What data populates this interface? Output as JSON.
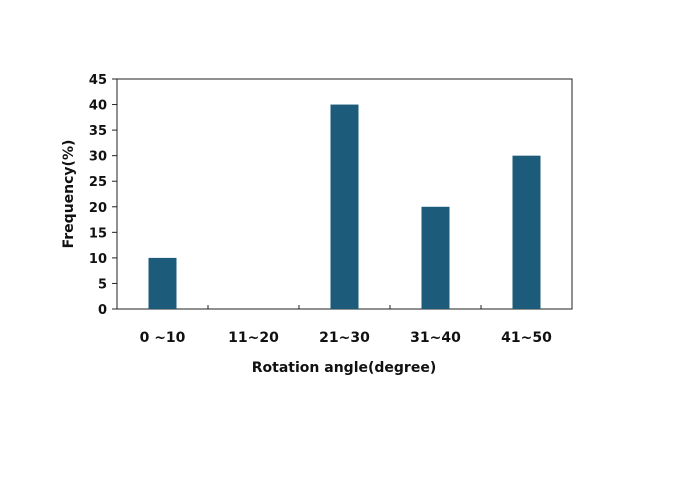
{
  "chart_data": {
    "type": "bar",
    "categories": [
      "0 ~10",
      "11~20",
      "21~30",
      "31~40",
      "41~50"
    ],
    "values": [
      10,
      0,
      40,
      20,
      30
    ],
    "title": "",
    "xlabel": "Rotation angle(degree)",
    "ylabel": "Frequency(%)",
    "ylim": [
      0,
      45
    ],
    "yticks": [
      0,
      5,
      10,
      15,
      20,
      25,
      30,
      35,
      40,
      45
    ],
    "grid": false,
    "bar_color": "#1d5b7a"
  }
}
